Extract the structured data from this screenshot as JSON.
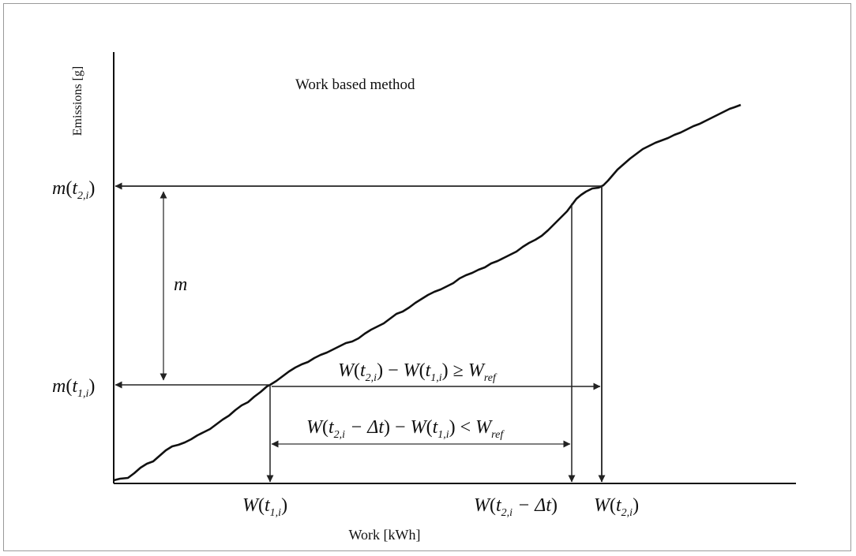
{
  "diagram": {
    "title": "Work based method",
    "y_axis_label": "Emissions [g]",
    "x_axis_label": "Work [kWh]",
    "y_marks": {
      "upper": {
        "func": "m",
        "var": "t",
        "sub": "2,i"
      },
      "lower": {
        "func": "m",
        "var": "t",
        "sub": "1,i"
      }
    },
    "x_marks": {
      "first": {
        "func": "W",
        "var": "t",
        "sub": "1,i"
      },
      "second": {
        "func": "W",
        "var": "t",
        "sub": "2,i",
        "delta": "− Δt"
      },
      "third": {
        "func": "W",
        "var": "t",
        "sub": "2,i"
      }
    },
    "m_label": "m",
    "condition_1": {
      "W": "W",
      "t": "t",
      "sub2": "2,i",
      "sub1": "1,i",
      "minus": "−",
      "op": "≥",
      "ref_sub": "ref"
    },
    "condition_2": {
      "W": "W",
      "t": "t",
      "sub2": "2,i",
      "sub1": "1,i",
      "delta": "− Δt",
      "minus": "−",
      "op": "<",
      "ref_sub": "ref"
    }
  }
}
